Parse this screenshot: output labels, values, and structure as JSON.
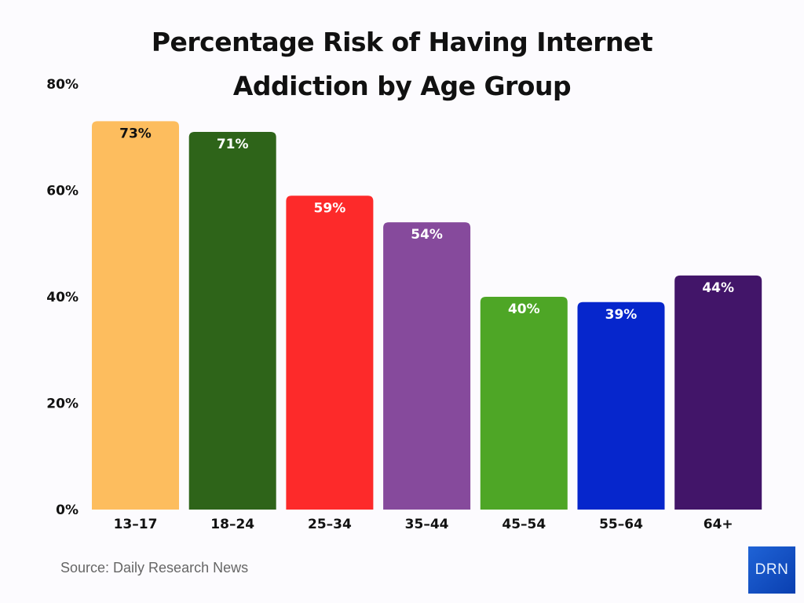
{
  "chart_data": {
    "type": "bar",
    "title": "Percentage Risk of Having Internet Addiction by Age Group",
    "categories": [
      "13–17",
      "18–24",
      "25–34",
      "35–44",
      "45–54",
      "55–64",
      "64+"
    ],
    "values": [
      73,
      71,
      59,
      54,
      40,
      39,
      44
    ],
    "data_labels": [
      "73%",
      "71%",
      "59%",
      "54%",
      "40%",
      "39%",
      "44%"
    ],
    "colors": [
      "#fdbd5e",
      "#2e6419",
      "#fd2a2a",
      "#864a9c",
      "#4ea626",
      "#0626cc",
      "#421569"
    ],
    "label_colors": [
      "#111111",
      "#ffffff",
      "#ffffff",
      "#ffffff",
      "#ffffff",
      "#ffffff",
      "#ffffff"
    ],
    "ylim": [
      0,
      80
    ],
    "yticks": [
      "0%",
      "20%",
      "40%",
      "60%",
      "80%"
    ],
    "ytick_values": [
      0,
      20,
      40,
      60,
      80
    ],
    "grid": false,
    "xlabel": "",
    "ylabel": ""
  },
  "source": "Source: Daily Research News",
  "logo_text": "DRN"
}
